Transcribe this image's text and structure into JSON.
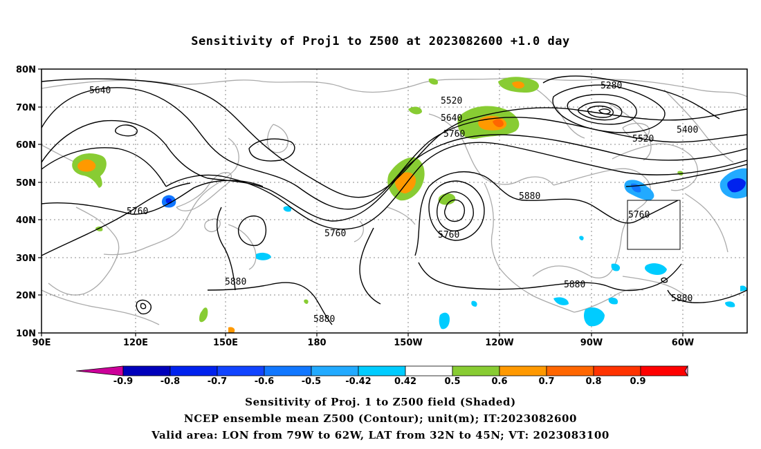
{
  "title": "Sensitivity of Proj1 to Z500 at 2023082600 +1.0 day",
  "axes": {
    "lat_ticks": [
      "80N",
      "70N",
      "60N",
      "50N",
      "40N",
      "30N",
      "20N",
      "10N"
    ],
    "lon_ticks": [
      "90E",
      "120E",
      "150E",
      "180",
      "150W",
      "120W",
      "90W",
      "60W"
    ]
  },
  "contours": {
    "unit": "m",
    "labels": [
      "5640",
      "5520",
      "5640",
      "5760",
      "5280",
      "5400",
      "5520",
      "5760",
      "5760",
      "5760",
      "5880",
      "5760",
      "5880",
      "5880",
      "5880",
      "5880"
    ]
  },
  "colorbar": {
    "labels": [
      "-0.9",
      "-0.8",
      "-0.7",
      "-0.6",
      "-0.5",
      "-0.42",
      "0.42",
      "0.5",
      "0.6",
      "0.7",
      "0.8",
      "0.9"
    ],
    "colors": [
      "#cc0099",
      "#0000bb",
      "#0022ee",
      "#1144ff",
      "#1177ff",
      "#22aaff",
      "#00ccff",
      "#ffffff",
      "#88cc33",
      "#ff9900",
      "#ff6600",
      "#ff3300",
      "#ff0000",
      "#ff99cc"
    ]
  },
  "captions": [
    "Sensitivity of Proj. 1 to Z500 field (Shaded)",
    "NCEP ensemble mean Z500 (Contour); unit(m); IT:2023082600",
    "Valid area: LON from 79W to 62W, LAT from 32N to 45N; VT: 2023083100"
  ],
  "valid_area": {
    "lon_min": "79W",
    "lon_max": "62W",
    "lat_min": "32N",
    "lat_max": "45N"
  }
}
